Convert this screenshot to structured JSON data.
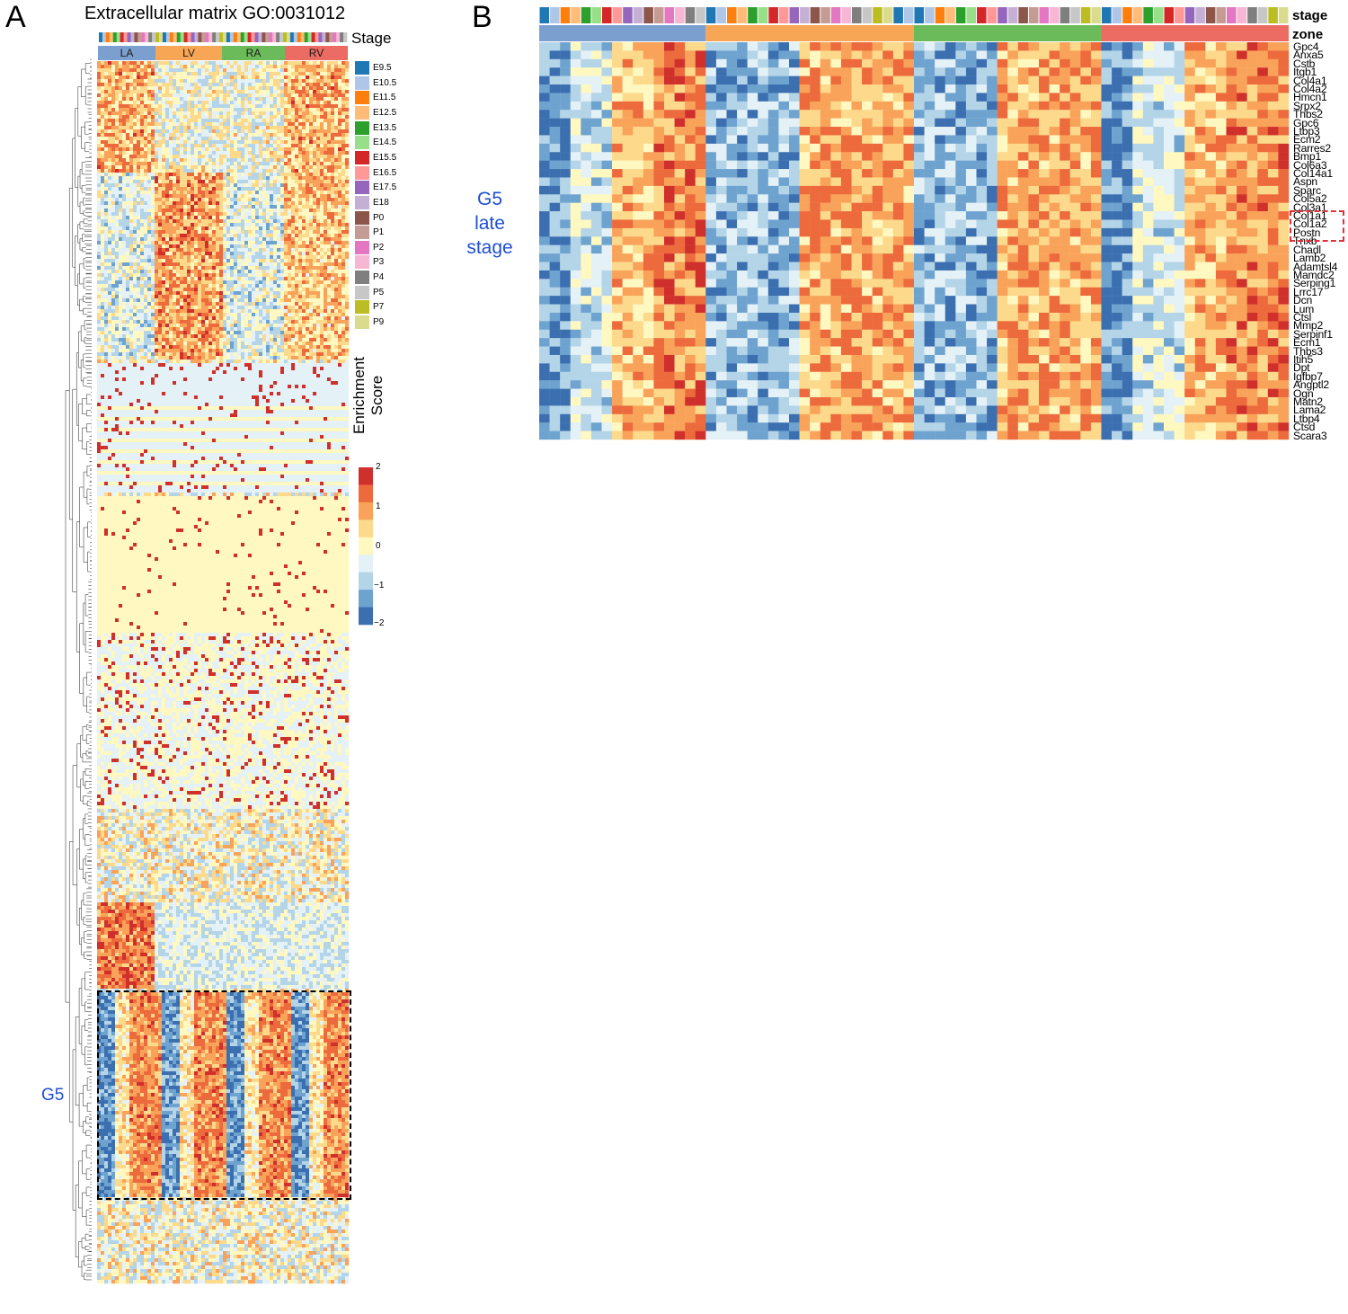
{
  "figure": {
    "panel_a_letter": "A",
    "panel_b_letter": "B"
  },
  "panel_a": {
    "title": "Extracellular matrix GO:0031012",
    "stage_label": "Stage",
    "zones": [
      {
        "name": "LA",
        "color": "#7b9fcf"
      },
      {
        "name": "LV",
        "color": "#f7a656"
      },
      {
        "name": "RA",
        "color": "#6cbb5a"
      },
      {
        "name": "RV",
        "color": "#ec6b63"
      }
    ],
    "stage_legend": [
      {
        "name": "E9.5",
        "color": "#1f77b4"
      },
      {
        "name": "E10.5",
        "color": "#aec7e8"
      },
      {
        "name": "E11.5",
        "color": "#ff7f0e"
      },
      {
        "name": "E12.5",
        "color": "#ffbb78"
      },
      {
        "name": "E13.5",
        "color": "#2ca02c"
      },
      {
        "name": "E14.5",
        "color": "#98df8a"
      },
      {
        "name": "E15.5",
        "color": "#d62728"
      },
      {
        "name": "E16.5",
        "color": "#ff9896"
      },
      {
        "name": "E17.5",
        "color": "#9467bd"
      },
      {
        "name": "E18",
        "color": "#c5b0d5"
      },
      {
        "name": "P0",
        "color": "#8c564b"
      },
      {
        "name": "P1",
        "color": "#c49c94"
      },
      {
        "name": "P2",
        "color": "#e377c2"
      },
      {
        "name": "P3",
        "color": "#f7b6d2"
      },
      {
        "name": "P4",
        "color": "#7f7f7f"
      },
      {
        "name": "P5",
        "color": "#c7c7c7"
      },
      {
        "name": "P7",
        "color": "#bcbd22"
      },
      {
        "name": "P9",
        "color": "#dbdb8d"
      }
    ],
    "enrichment_line1": "Enrichment",
    "enrichment_line2": "Score",
    "scale_ticks": [
      "2",
      "1",
      "0",
      "−1",
      "−2"
    ],
    "cluster_label": "G5"
  },
  "panel_b": {
    "annotation_labels": {
      "stage": "stage",
      "zone": "zone"
    },
    "side_label": [
      "G5",
      "late",
      "stage"
    ],
    "genes": [
      "Gpc4",
      "Anxa5",
      "Cstb",
      "Itgb1",
      "Col4a1",
      "Col4a2",
      "Hmcn1",
      "Srpx2",
      "Thbs2",
      "Gpc6",
      "Ltbp3",
      "Ecm2",
      "Rarres2",
      "Bmp1",
      "Col6a3",
      "Col14a1",
      "Aspn",
      "Sparc",
      "Col5a2",
      "Col3a1",
      "Col1a1",
      "Col1a2",
      "Postn",
      "Tnxb",
      "Chadl",
      "Lamb2",
      "Adamtsl4",
      "Mamdc2",
      "Serping1",
      "Lrrc17",
      "Dcn",
      "Lum",
      "Ctsl",
      "Mmp2",
      "Serpinf1",
      "Ecm1",
      "Thbs3",
      "Itih5",
      "Dpt",
      "Igfbp7",
      "Angptl2",
      "Ogn",
      "Matn2",
      "Lama2",
      "Ltbp4",
      "Ctsd",
      "Scara3"
    ],
    "highlighted_genes": [
      "Col3a1",
      "Col1a1",
      "Col1a2",
      "Postn"
    ]
  },
  "chart_data": [
    {
      "type": "heatmap",
      "title": "Extracellular matrix GO:0031012",
      "column_groups": [
        "LA",
        "LV",
        "RA",
        "RV"
      ],
      "column_annotation": "Stage",
      "stages": [
        "E9.5",
        "E10.5",
        "E11.5",
        "E12.5",
        "E13.5",
        "E14.5",
        "E15.5",
        "E16.5",
        "E17.5",
        "E18",
        "P0",
        "P1",
        "P2",
        "P3",
        "P4",
        "P5",
        "P7",
        "P9"
      ],
      "color_scale": {
        "label": "Enrichment Score",
        "min": -2,
        "max": 2,
        "ticks": [
          2,
          1,
          0,
          -1,
          -2
        ],
        "colors": [
          "#3b6fb0",
          "#6fa3cf",
          "#b4d4e8",
          "#e4f1f6",
          "#fff8c0",
          "#fcd98b",
          "#f9a35a",
          "#ec6a3c",
          "#d0302c"
        ]
      },
      "row_dendrogram": true,
      "highlighted_cluster": "G5"
    },
    {
      "type": "heatmap",
      "title": "",
      "column_annotations": [
        "stage",
        "zone"
      ],
      "zones": [
        "LA",
        "LV",
        "RA",
        "RV"
      ],
      "stages": [
        "E9.5",
        "E10.5",
        "E11.5",
        "E12.5",
        "E13.5",
        "E14.5",
        "E15.5",
        "E16.5",
        "E17.5",
        "E18",
        "P0",
        "P1",
        "P2",
        "P3",
        "P4",
        "P5",
        "P7",
        "P9"
      ],
      "rows": [
        "Gpc4",
        "Anxa5",
        "Cstb",
        "Itgb1",
        "Col4a1",
        "Col4a2",
        "Hmcn1",
        "Srpx2",
        "Thbs2",
        "Gpc6",
        "Ltbp3",
        "Ecm2",
        "Rarres2",
        "Bmp1",
        "Col6a3",
        "Col14a1",
        "Aspn",
        "Sparc",
        "Col5a2",
        "Col3a1",
        "Col1a1",
        "Col1a2",
        "Postn",
        "Tnxb",
        "Chadl",
        "Lamb2",
        "Adamtsl4",
        "Mamdc2",
        "Serping1",
        "Lrrc17",
        "Dcn",
        "Lum",
        "Ctsl",
        "Mmp2",
        "Serpinf1",
        "Ecm1",
        "Thbs3",
        "Itih5",
        "Dpt",
        "Igfbp7",
        "Angptl2",
        "Ogn",
        "Matn2",
        "Lama2",
        "Ltbp4",
        "Ctsd",
        "Scara3"
      ],
      "highlighted_rows": [
        "Col3a1",
        "Col1a1",
        "Col1a2",
        "Postn"
      ],
      "row_group_label": "G5 late stage"
    }
  ]
}
